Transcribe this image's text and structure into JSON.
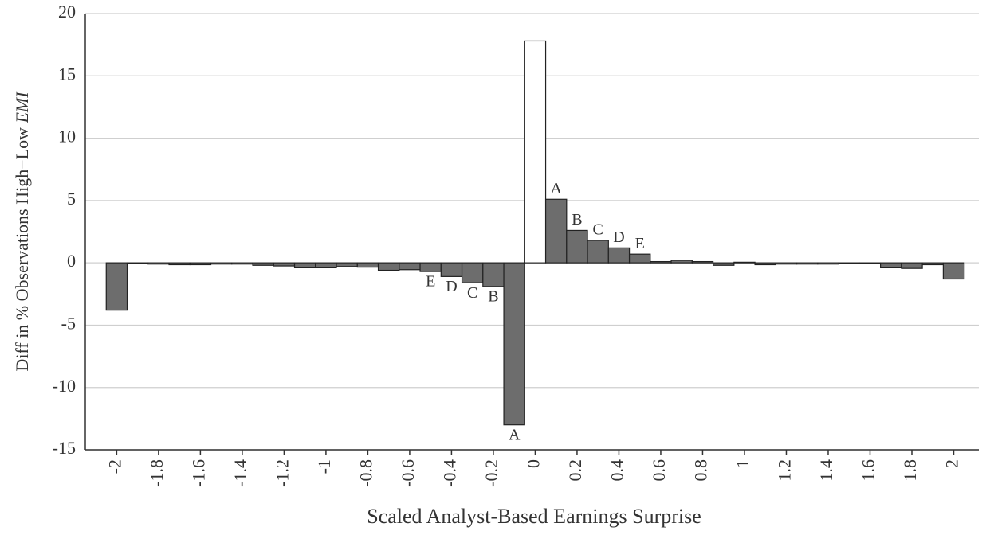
{
  "chart_data": {
    "type": "bar",
    "ylabel": "Diff in % Observations High−Low",
    "ylabel_italic": "EMI",
    "xlabel": "Scaled Analyst-Based Earnings Surprise",
    "x": [
      -2,
      -1.9,
      -1.8,
      -1.7,
      -1.6,
      -1.5,
      -1.4,
      -1.3,
      -1.2,
      -1.1,
      -1,
      -0.9,
      -0.8,
      -0.7,
      -0.6,
      -0.5,
      -0.4,
      -0.3,
      -0.2,
      -0.1,
      0,
      0.1,
      0.2,
      0.3,
      0.4,
      0.5,
      0.6,
      0.7,
      0.8,
      0.9,
      1,
      1.1,
      1.2,
      1.3,
      1.4,
      1.5,
      1.6,
      1.7,
      1.8,
      1.9,
      2
    ],
    "values": [
      -3.8,
      -0.05,
      -0.1,
      -0.15,
      -0.15,
      -0.1,
      -0.1,
      -0.2,
      -0.25,
      -0.4,
      -0.4,
      -0.3,
      -0.35,
      -0.6,
      -0.55,
      -0.7,
      -1.1,
      -1.6,
      -1.9,
      -13.0,
      17.8,
      5.1,
      2.6,
      1.8,
      1.2,
      0.7,
      0.1,
      0.2,
      0.1,
      -0.2,
      0.05,
      -0.15,
      -0.1,
      -0.1,
      -0.1,
      -0.05,
      -0.05,
      -0.4,
      -0.45,
      -0.15,
      -1.3
    ],
    "bar_labels": [
      null,
      null,
      null,
      null,
      null,
      null,
      null,
      null,
      null,
      null,
      null,
      null,
      null,
      null,
      null,
      "E",
      "D",
      "C",
      "B",
      "A",
      null,
      "A",
      "B",
      "C",
      "D",
      "E",
      null,
      null,
      null,
      null,
      null,
      null,
      null,
      null,
      null,
      null,
      null,
      null,
      null,
      null,
      null
    ],
    "colors": [
      "#6d6d6d",
      "#6d6d6d",
      "#6d6d6d",
      "#6d6d6d",
      "#6d6d6d",
      "#6d6d6d",
      "#6d6d6d",
      "#6d6d6d",
      "#6d6d6d",
      "#6d6d6d",
      "#6d6d6d",
      "#6d6d6d",
      "#6d6d6d",
      "#6d6d6d",
      "#6d6d6d",
      "#6d6d6d",
      "#6d6d6d",
      "#6d6d6d",
      "#6d6d6d",
      "#6d6d6d",
      "#ffffff",
      "#6d6d6d",
      "#6d6d6d",
      "#6d6d6d",
      "#6d6d6d",
      "#6d6d6d",
      "#6d6d6d",
      "#6d6d6d",
      "#6d6d6d",
      "#6d6d6d",
      "#6d6d6d",
      "#6d6d6d",
      "#6d6d6d",
      "#6d6d6d",
      "#6d6d6d",
      "#6d6d6d",
      "#6d6d6d",
      "#6d6d6d",
      "#6d6d6d",
      "#6d6d6d",
      "#6d6d6d"
    ],
    "bar_width": 0.1,
    "xlim": [
      -2.15,
      2.12
    ],
    "xticks": [
      -2,
      -1.8,
      -1.6,
      -1.4,
      -1.2,
      -1,
      -0.8,
      -0.6,
      -0.4,
      -0.2,
      0,
      0.2,
      0.4,
      0.6,
      0.8,
      1,
      1.2,
      1.4,
      1.6,
      1.8,
      2
    ],
    "ylim": [
      -15,
      20
    ],
    "yticks": [
      -15,
      -10,
      -5,
      0,
      5,
      10,
      15,
      20
    ],
    "grid": true
  }
}
